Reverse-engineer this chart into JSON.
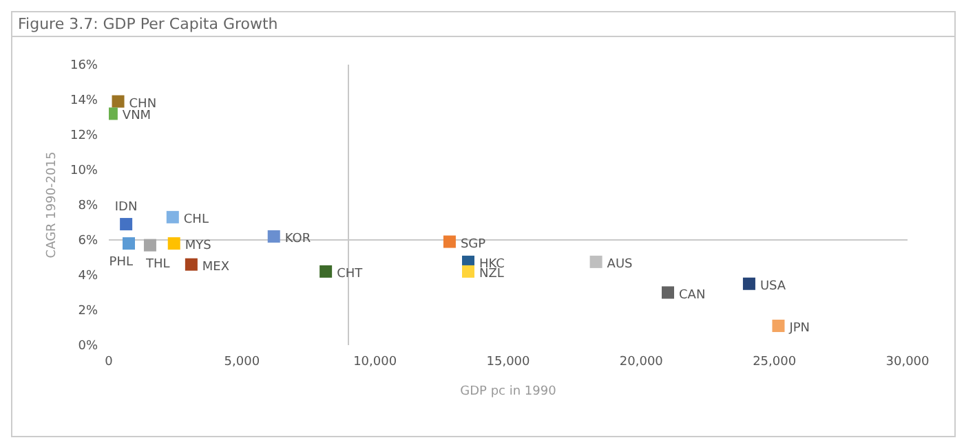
{
  "chart_data": {
    "type": "scatter",
    "title": "Figure 3.7: GDP Per Capita Growth",
    "xlabel": "GDP pc in 1990",
    "ylabel": "CAGR 1990-2015",
    "marker": "square",
    "legend": false,
    "grid": false,
    "xlim": [
      0,
      30000
    ],
    "xticks": [
      0,
      {
        "value": 5000,
        "label": "5,000"
      },
      {
        "value": 10000,
        "label": "10,000"
      },
      {
        "value": 15000,
        "label": "15,000"
      },
      {
        "value": 20000,
        "label": "20,000"
      },
      {
        "value": 25000,
        "label": "25,000"
      },
      {
        "value": 30000,
        "label": "30,000"
      }
    ],
    "ylim": [
      0,
      16
    ],
    "yticks": [
      {
        "value": 0,
        "label": "0%"
      },
      {
        "value": 2,
        "label": "2%"
      },
      {
        "value": 4,
        "label": "4%"
      },
      {
        "value": 6,
        "label": "6%"
      },
      {
        "value": 8,
        "label": "8%"
      },
      {
        "value": 10,
        "label": "10%"
      },
      {
        "value": 12,
        "label": "12%"
      },
      {
        "value": 14,
        "label": "14%"
      },
      {
        "value": 16,
        "label": "16%"
      }
    ],
    "ref_lines": [
      {
        "axis": "y",
        "value": 6,
        "color": "#c8c8c8"
      },
      {
        "axis": "x",
        "value": 9000,
        "color": "#c8c8c8"
      }
    ],
    "series": [
      {
        "name": "CHN",
        "color": "#9c7424",
        "x": [
          350
        ],
        "values": [
          13.9
        ]
      },
      {
        "name": "VNM",
        "color": "#6ab04c",
        "x": [
          100
        ],
        "values": [
          13.2
        ]
      },
      {
        "name": "IDN",
        "color": "#4472c4",
        "x": [
          650
        ],
        "values": [
          6.9
        ]
      },
      {
        "name": "CHL",
        "color": "#7fb2e5",
        "x": [
          2400
        ],
        "values": [
          7.3
        ]
      },
      {
        "name": "PHL",
        "color": "#5b9bd5",
        "x": [
          750
        ],
        "values": [
          5.8
        ]
      },
      {
        "name": "THL",
        "color": "#a5a5a5",
        "x": [
          1550
        ],
        "values": [
          5.7
        ]
      },
      {
        "name": "MYS",
        "color": "#ffc000",
        "x": [
          2450
        ],
        "values": [
          5.8
        ]
      },
      {
        "name": "MEX",
        "color": "#a9441d",
        "x": [
          3100
        ],
        "values": [
          4.6
        ]
      },
      {
        "name": "KOR",
        "color": "#6a8fd0",
        "x": [
          6200
        ],
        "values": [
          6.2
        ]
      },
      {
        "name": "CHT",
        "color": "#3d6b2a",
        "x": [
          8150
        ],
        "values": [
          4.2
        ]
      },
      {
        "name": "SGP",
        "color": "#ed7d31",
        "x": [
          12800
        ],
        "values": [
          5.9
        ]
      },
      {
        "name": "HKC",
        "color": "#255e91",
        "x": [
          13500
        ],
        "values": [
          4.75
        ]
      },
      {
        "name": "NZL",
        "color": "#ffd43a",
        "x": [
          13500
        ],
        "values": [
          4.2
        ]
      },
      {
        "name": "AUS",
        "color": "#bfbfbf",
        "x": [
          18300
        ],
        "values": [
          4.75
        ]
      },
      {
        "name": "CAN",
        "color": "#636363",
        "x": [
          21000
        ],
        "values": [
          3.0
        ]
      },
      {
        "name": "USA",
        "color": "#264478",
        "x": [
          24050
        ],
        "values": [
          3.5
        ]
      },
      {
        "name": "JPN",
        "color": "#f4a460",
        "x": [
          25150
        ],
        "values": [
          1.1
        ]
      }
    ]
  }
}
